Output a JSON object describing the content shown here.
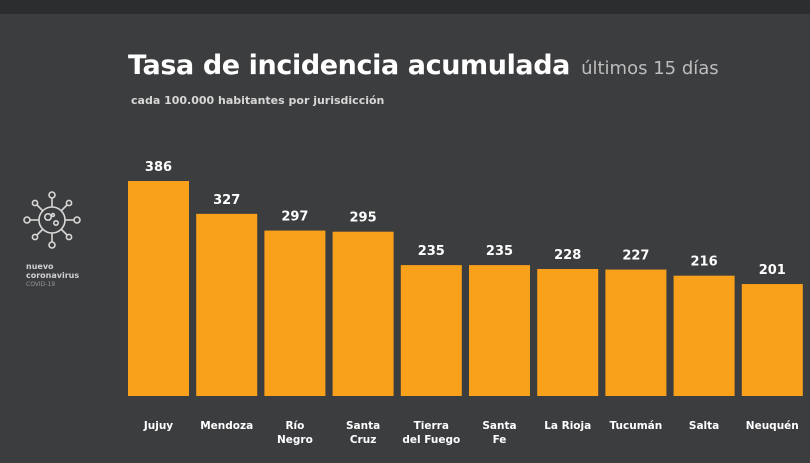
{
  "header": {
    "title": "Tasa de incidencia acumulada",
    "title_suffix": "últimos 15 días",
    "subtitle": "cada 100.000 habitantes por jurisdicción"
  },
  "logo": {
    "line1": "nuevo",
    "line2": "coronavirus",
    "line3": "COVID-19",
    "icon": "coronavirus-icon"
  },
  "colors": {
    "background": "#3c3d3f",
    "bar": "#f9a11b",
    "text": "#ffffff"
  },
  "chart_data": {
    "type": "bar",
    "title": "Tasa de incidencia acumulada",
    "subtitle": "cada 100.000 habitantes por jurisdicción",
    "categories": [
      [
        "Jujuy"
      ],
      [
        "Mendoza"
      ],
      [
        "Río",
        "Negro"
      ],
      [
        "Santa",
        "Cruz"
      ],
      [
        "Tierra",
        "del Fuego"
      ],
      [
        "Santa",
        "Fe"
      ],
      [
        "La Rioja"
      ],
      [
        "Tucumán"
      ],
      [
        "Salta"
      ],
      [
        "Neuquén"
      ]
    ],
    "values": [
      386,
      327,
      297,
      295,
      235,
      235,
      228,
      227,
      216,
      201
    ],
    "ylim": [
      0,
      386
    ],
    "grid": false,
    "legend": "none",
    "data_labels": true
  }
}
